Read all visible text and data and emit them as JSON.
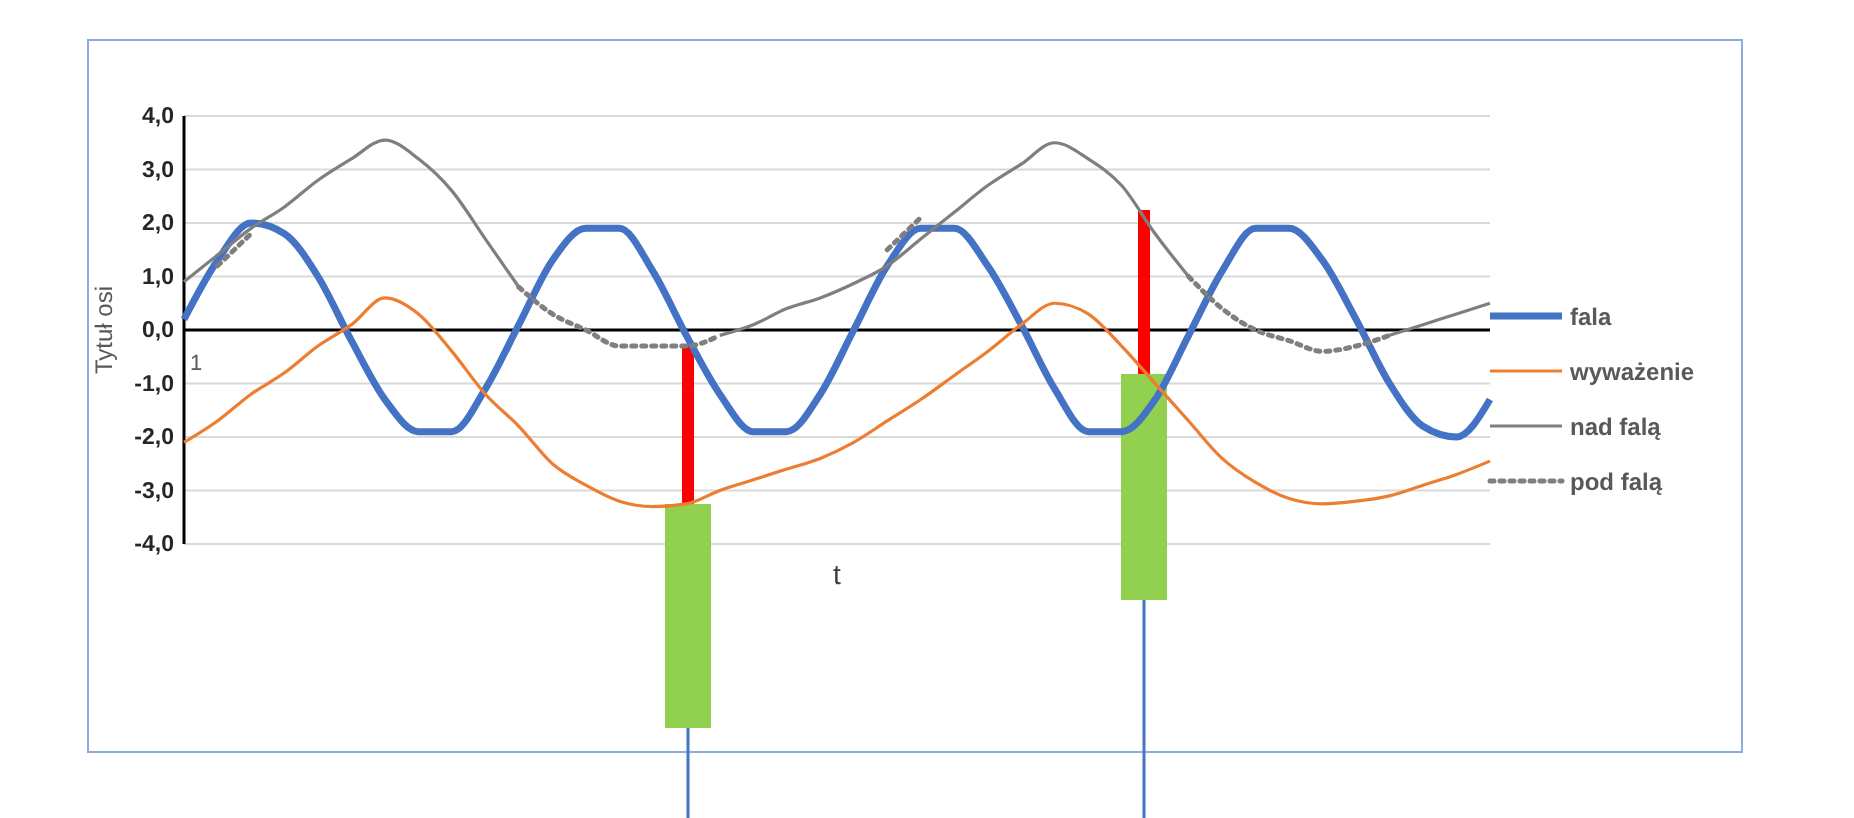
{
  "chart_data": {
    "type": "line",
    "ylabel": "Tytuł osi",
    "xlabel": "t",
    "ylim": [
      -4,
      4
    ],
    "yticks": [
      {
        "value": 4,
        "label": "4,0"
      },
      {
        "value": 3,
        "label": "3,0"
      },
      {
        "value": 2,
        "label": "2,0"
      },
      {
        "value": 1,
        "label": "1,0"
      },
      {
        "value": 0,
        "label": "0,0"
      },
      {
        "value": -1,
        "label": "-1,0"
      },
      {
        "value": -2,
        "label": "-2,0"
      },
      {
        "value": -3,
        "label": "-3,0"
      },
      {
        "value": -4,
        "label": "-4,0"
      }
    ],
    "categories": [
      "1",
      null,
      null,
      null,
      null,
      null,
      null,
      null,
      null,
      null,
      null,
      null,
      null,
      null,
      null,
      null,
      null,
      null,
      null,
      null,
      null,
      null,
      null,
      null,
      null,
      null,
      null,
      null,
      null,
      null,
      null,
      null,
      null,
      null,
      null,
      null,
      null,
      null,
      null,
      null
    ],
    "grid": "y",
    "legend": "right",
    "series": [
      {
        "name": "fala",
        "color": "#4472c4",
        "values": [
          0.2,
          1.3,
          2.0,
          1.8,
          1.0,
          -0.2,
          -1.3,
          -1.9,
          -1.9,
          -1.1,
          0.1,
          1.3,
          1.9,
          1.9,
          1.1,
          -0.1,
          -1.2,
          -1.9,
          -1.9,
          -1.2,
          0.0,
          1.2,
          1.9,
          1.9,
          1.2,
          0.1,
          -1.1,
          -1.9,
          -1.9,
          -1.3,
          -0.1,
          1.1,
          1.9,
          1.9,
          1.3,
          0.2,
          -1.0,
          -1.8,
          -2.0,
          -1.3
        ]
      },
      {
        "name": "wyważenie",
        "color": "#ed7d31",
        "values": [
          -2.1,
          -1.7,
          -1.2,
          -0.8,
          -0.3,
          0.1,
          0.6,
          0.3,
          -0.4,
          -1.2,
          -1.8,
          -2.5,
          -2.9,
          -3.2,
          -3.3,
          -3.25,
          -3.0,
          -2.8,
          -2.6,
          -2.4,
          -2.1,
          -1.7,
          -1.3,
          -0.85,
          -0.4,
          0.1,
          0.5,
          0.3,
          -0.3,
          -1.0,
          -1.7,
          -2.4,
          -2.85,
          -3.15,
          -3.25,
          -3.2,
          -3.1,
          -2.9,
          -2.7,
          -2.45
        ]
      },
      {
        "name": "nad falą",
        "color": "#7f7f7f",
        "values": [
          0.9,
          1.4,
          1.9,
          2.3,
          2.8,
          3.2,
          3.55,
          3.2,
          2.6,
          1.7,
          0.8,
          null,
          null,
          null,
          null,
          null,
          -0.1,
          0.1,
          0.4,
          0.6,
          0.87,
          1.2,
          1.7,
          2.2,
          2.7,
          3.1,
          3.5,
          3.2,
          2.7,
          1.8,
          1.0,
          null,
          null,
          null,
          null,
          null,
          -0.1,
          0.1,
          0.3,
          0.5
        ]
      },
      {
        "name": "pod falą",
        "color": "#7f7f7f",
        "line_style": "dotted",
        "values": [
          null,
          1.2,
          1.8,
          null,
          null,
          null,
          null,
          null,
          null,
          null,
          0.8,
          0.3,
          0.0,
          -0.3,
          -0.3,
          -0.3,
          -0.1,
          null,
          null,
          null,
          null,
          1.5,
          2.1,
          null,
          null,
          null,
          null,
          null,
          null,
          null,
          1.0,
          0.4,
          0.0,
          -0.2,
          -0.4,
          -0.3,
          -0.1,
          null,
          null,
          null
        ]
      }
    ]
  }
}
